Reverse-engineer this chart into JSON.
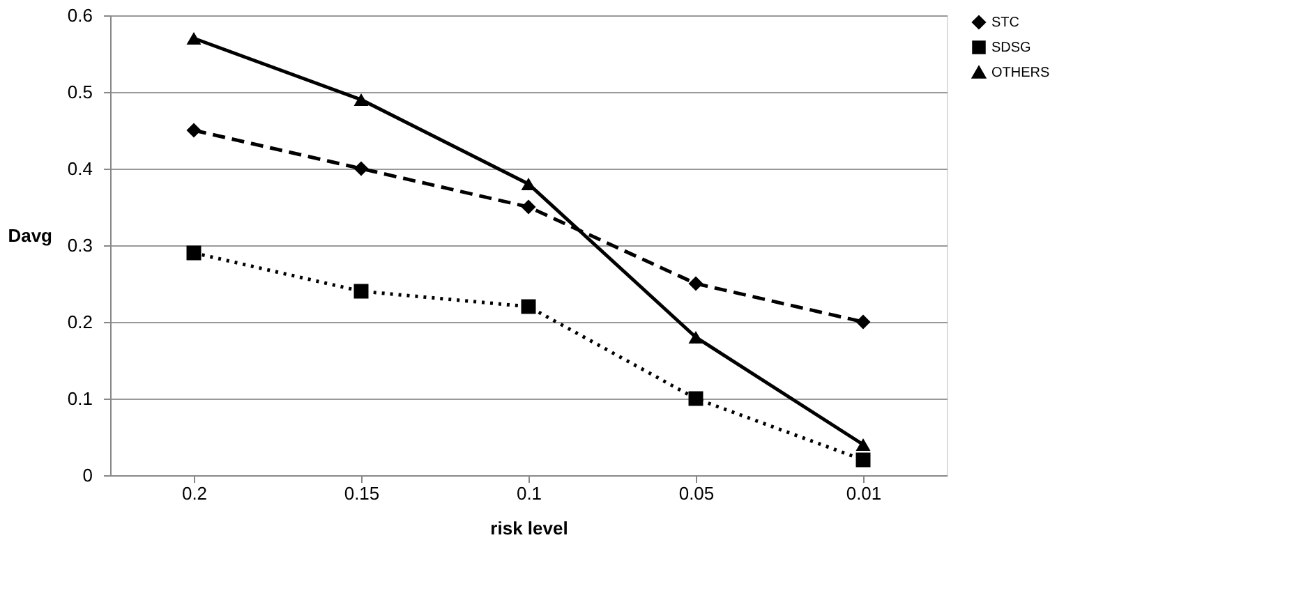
{
  "chart_data": {
    "type": "line",
    "xlabel": "risk level",
    "ylabel": "Davg",
    "categories": [
      "0.2",
      "0.15",
      "0.1",
      "0.05",
      "0.01"
    ],
    "series": [
      {
        "name": "STC",
        "color": "#000000",
        "marker": "diamond",
        "line_style": "dashed",
        "values": [
          0.45,
          0.4,
          0.35,
          0.25,
          0.2
        ]
      },
      {
        "name": "SDSG",
        "color": "#000000",
        "marker": "square",
        "line_style": "dotted",
        "values": [
          0.29,
          0.24,
          0.22,
          0.1,
          0.02
        ]
      },
      {
        "name": "OTHERS",
        "color": "#000000",
        "marker": "triangle",
        "line_style": "solid",
        "values": [
          0.57,
          0.49,
          0.38,
          0.18,
          0.04
        ]
      }
    ],
    "ylim": [
      0,
      0.6
    ],
    "yticks": [
      0,
      0.1,
      0.2,
      0.3,
      0.4,
      0.5,
      0.6
    ],
    "grid": "y",
    "legend": "right"
  }
}
